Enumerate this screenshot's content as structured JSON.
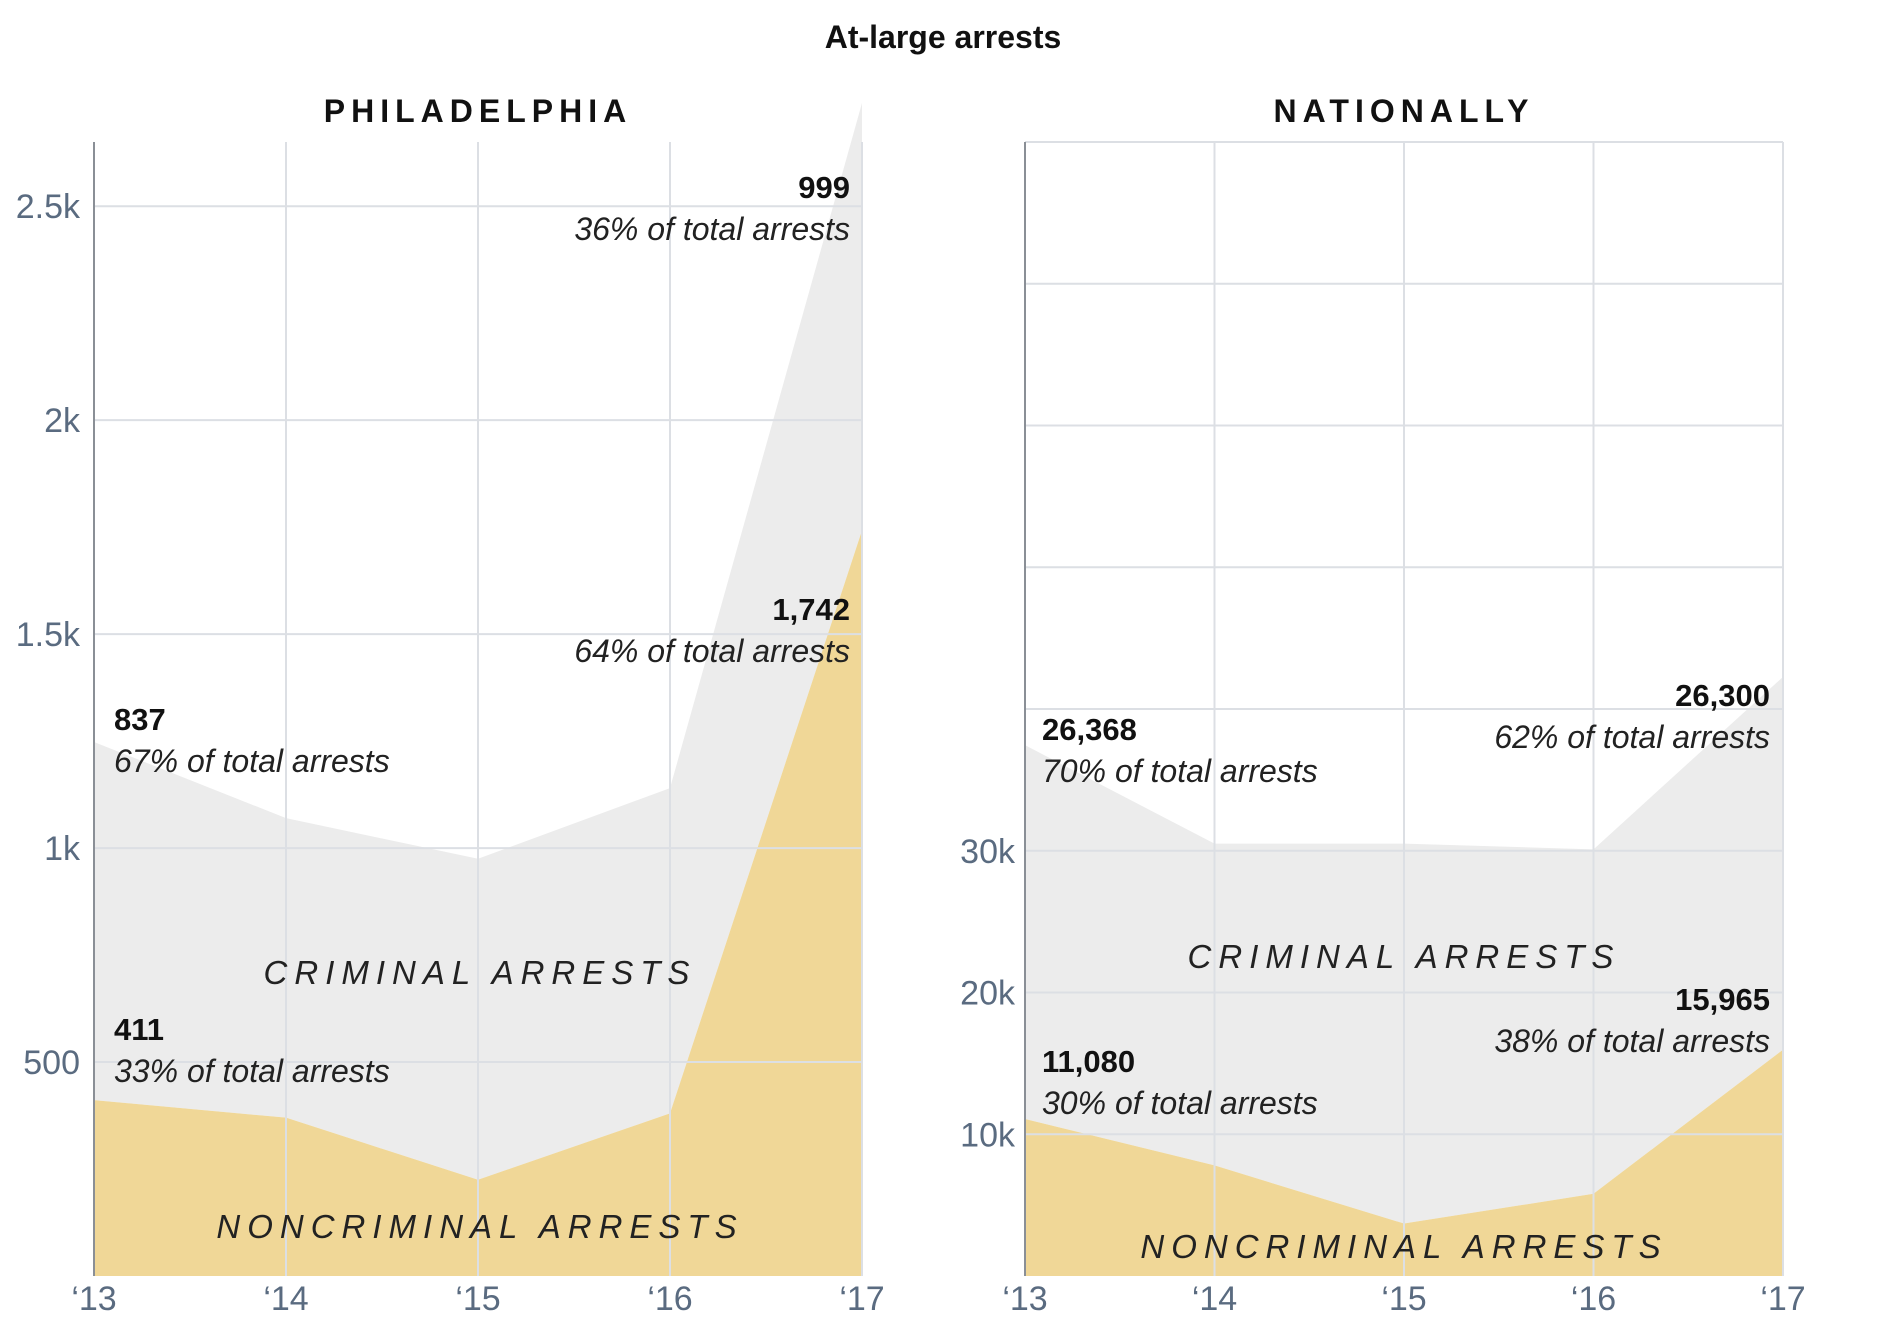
{
  "title": "At-large arrests",
  "colors": {
    "criminal": "#ececec",
    "noncriminal": "#f0d797",
    "grid": "#dcdfe4",
    "tick": "#5a6b80"
  },
  "chart_data": [
    {
      "type": "area",
      "title": "PHILADELPHIA",
      "categories": [
        "‘13",
        "‘14",
        "‘15",
        "‘16",
        "‘17"
      ],
      "series": [
        {
          "name": "NONCRIMINAL ARRESTS",
          "values": [
            411,
            370,
            225,
            380,
            1742
          ]
        },
        {
          "name": "CRIMINAL ARRESTS",
          "values": [
            837,
            700,
            750,
            760,
            999
          ]
        }
      ],
      "stacked": true,
      "ylim": [
        0,
        2650
      ],
      "yticks": [
        500,
        1000,
        1500,
        2000,
        2500
      ],
      "ytick_labels": [
        "500",
        "1k",
        "1.5k",
        "2k",
        "2.5k"
      ],
      "annotations": [
        {
          "category": "‘13",
          "value": "837",
          "text": "67% of total arrests"
        },
        {
          "category": "‘13",
          "value": "411",
          "text": "33% of total arrests"
        },
        {
          "category": "‘17",
          "value": "999",
          "text": "36% of total arrests"
        },
        {
          "category": "‘17",
          "value": "1,742",
          "text": "64% of total arrests"
        }
      ],
      "grid": true
    },
    {
      "type": "area",
      "title": "NATIONALLY",
      "categories": [
        "‘13",
        "‘14",
        "‘15",
        "‘16",
        "‘17"
      ],
      "series": [
        {
          "name": "NONCRIMINAL ARRESTS",
          "values": [
            11080,
            7800,
            3700,
            5800,
            15965
          ]
        },
        {
          "name": "CRIMINAL ARRESTS",
          "values": [
            26368,
            22700,
            26800,
            24300,
            26300
          ]
        }
      ],
      "stacked": true,
      "ylim": [
        0,
        80000
      ],
      "yticks": [
        10000,
        20000,
        30000
      ],
      "ytick_labels": [
        "10k",
        "20k",
        "30k"
      ],
      "annotations": [
        {
          "category": "‘13",
          "value": "26,368",
          "text": "70% of total arrests"
        },
        {
          "category": "‘13",
          "value": "11,080",
          "text": "30% of total arrests"
        },
        {
          "category": "‘17",
          "value": "26,300",
          "text": "62% of total arrests"
        },
        {
          "category": "‘17",
          "value": "15,965",
          "text": "38% of total arrests"
        }
      ],
      "grid": true
    }
  ]
}
